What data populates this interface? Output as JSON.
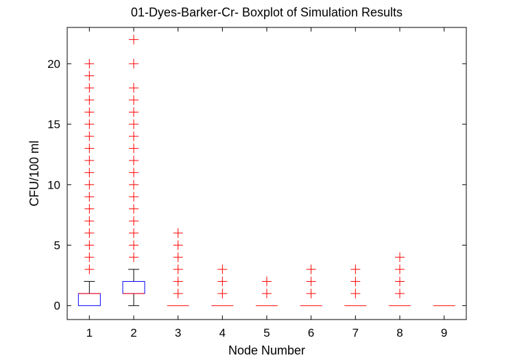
{
  "chart_data": {
    "type": "boxplot",
    "title": "01-Dyes-Barker-Cr- Boxplot of Simulation Results",
    "xlabel": "Node Number",
    "ylabel": "CFU/100 ml",
    "xlim": [
      0.5,
      9.5
    ],
    "ylim": [
      -1.15,
      23
    ],
    "xticks": [
      "1",
      "2",
      "3",
      "4",
      "5",
      "6",
      "7",
      "8",
      "9"
    ],
    "yticks": [
      0,
      5,
      10,
      15,
      20
    ],
    "grid": false,
    "colors": {
      "box": "#0000ff",
      "median": "#ff0000",
      "outlier": "#ff0000",
      "whisker": "#000000"
    },
    "boxes": [
      {
        "node": 1,
        "whisker_low": 0,
        "q1": 0,
        "median": 1,
        "q3": 1,
        "whisker_high": 2,
        "outliers": [
          3,
          4,
          5,
          6,
          7,
          8,
          9,
          10,
          11,
          12,
          13,
          14,
          15,
          16,
          17,
          18,
          19,
          20
        ]
      },
      {
        "node": 2,
        "whisker_low": 0,
        "q1": 1,
        "median": 1,
        "q3": 2,
        "whisker_high": 3,
        "outliers": [
          4,
          5,
          6,
          7,
          8,
          9,
          10,
          11,
          12,
          13,
          14,
          15,
          16,
          17,
          18,
          20,
          22
        ]
      },
      {
        "node": 3,
        "whisker_low": 0,
        "q1": 0,
        "median": 0,
        "q3": 0,
        "whisker_high": 0,
        "outliers": [
          1,
          2,
          3,
          4,
          5,
          6
        ]
      },
      {
        "node": 4,
        "whisker_low": 0,
        "q1": 0,
        "median": 0,
        "q3": 0,
        "whisker_high": 0,
        "outliers": [
          1,
          2,
          3
        ]
      },
      {
        "node": 5,
        "whisker_low": 0,
        "q1": 0,
        "median": 0,
        "q3": 0,
        "whisker_high": 0,
        "outliers": [
          1,
          2
        ]
      },
      {
        "node": 6,
        "whisker_low": 0,
        "q1": 0,
        "median": 0,
        "q3": 0,
        "whisker_high": 0,
        "outliers": [
          1,
          2,
          3
        ]
      },
      {
        "node": 7,
        "whisker_low": 0,
        "q1": 0,
        "median": 0,
        "q3": 0,
        "whisker_high": 0,
        "outliers": [
          1,
          2,
          3
        ]
      },
      {
        "node": 8,
        "whisker_low": 0,
        "q1": 0,
        "median": 0,
        "q3": 0,
        "whisker_high": 0,
        "outliers": [
          1,
          2,
          3,
          4
        ]
      },
      {
        "node": 9,
        "whisker_low": 0,
        "q1": 0,
        "median": 0,
        "q3": 0,
        "whisker_high": 0,
        "outliers": []
      }
    ]
  }
}
